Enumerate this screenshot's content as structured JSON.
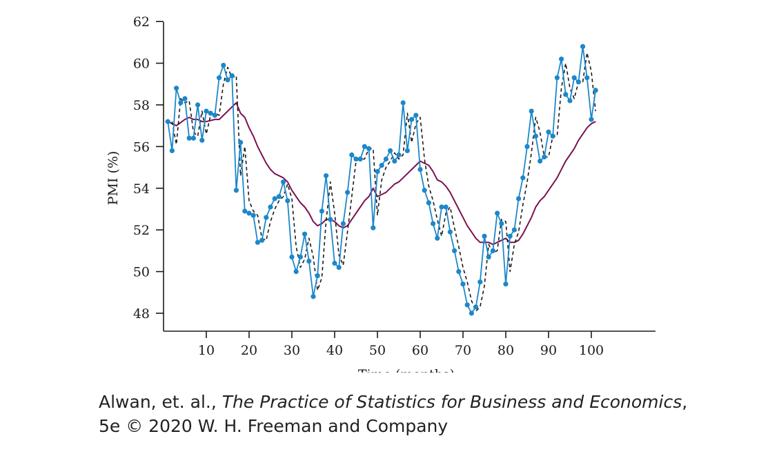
{
  "chart_data": {
    "type": "line",
    "xlabel": "Time (months)",
    "ylabel": "PMI (%)",
    "xlim": [
      0,
      102
    ],
    "ylim": [
      47.2,
      62
    ],
    "xticks": [
      10,
      20,
      30,
      40,
      50,
      60,
      70,
      80,
      90,
      100
    ],
    "yticks": [
      48,
      50,
      52,
      54,
      56,
      58,
      60,
      62
    ],
    "grid": false,
    "legend": "none",
    "series": [
      {
        "style": "line-with-markers",
        "color": "#1c87c9",
        "x": [
          1,
          2,
          3,
          4,
          5,
          6,
          7,
          8,
          9,
          10,
          11,
          12,
          13,
          14,
          15,
          16,
          17,
          18,
          19,
          20,
          21,
          22,
          23,
          24,
          25,
          26,
          27,
          28,
          29,
          30,
          31,
          32,
          33,
          34,
          35,
          36,
          37,
          38,
          39,
          40,
          41,
          42,
          43,
          44,
          45,
          46,
          47,
          48,
          49,
          50,
          51,
          52,
          53,
          54,
          55,
          56,
          57,
          58,
          59,
          60,
          61,
          62,
          63,
          64,
          65,
          66,
          67,
          68,
          69,
          70,
          71,
          72,
          73,
          74,
          75,
          76,
          77,
          78,
          79,
          80,
          81,
          82,
          83,
          84,
          85,
          86,
          87,
          88,
          89,
          90,
          91,
          92,
          93,
          94,
          95,
          96,
          97,
          98,
          99,
          100,
          101
        ],
        "values": [
          57.2,
          55.8,
          58.8,
          58.1,
          58.3,
          56.4,
          56.4,
          58.0,
          56.3,
          57.7,
          57.6,
          57.5,
          59.3,
          59.9,
          59.2,
          59.4,
          53.9,
          56.2,
          52.9,
          52.8,
          52.7,
          51.4,
          51.5,
          52.6,
          53.1,
          53.5,
          53.6,
          54.3,
          53.4,
          50.7,
          50.0,
          50.7,
          51.8,
          50.5,
          48.8,
          49.8,
          52.9,
          54.6,
          52.5,
          50.4,
          50.2,
          52.3,
          53.8,
          55.6,
          55.4,
          55.4,
          56.0,
          55.9,
          52.1,
          54.8,
          55.1,
          55.4,
          55.8,
          55.3,
          55.6,
          58.1,
          55.8,
          57.3,
          57.5,
          54.9,
          53.9,
          53.3,
          52.3,
          51.6,
          53.1,
          53.1,
          51.9,
          51.0,
          50.0,
          49.4,
          48.4,
          48.0,
          48.3,
          49.5,
          51.7,
          50.7,
          51.0,
          52.8,
          52.3,
          49.4,
          51.7,
          52.0,
          53.5,
          54.5,
          56.0,
          57.7,
          56.5,
          55.3,
          55.5,
          56.7,
          56.5,
          59.3,
          60.2,
          58.5,
          58.2,
          59.3,
          59.1,
          60.8,
          59.3,
          57.3,
          58.7
        ]
      },
      {
        "style": "dashed",
        "color": "#1a1a1a",
        "x": [
          2,
          3,
          4,
          5,
          6,
          7,
          8,
          9,
          10,
          11,
          12,
          13,
          14,
          15,
          16,
          17,
          18,
          19,
          20,
          21,
          22,
          23,
          24,
          25,
          26,
          27,
          28,
          29,
          30,
          31,
          32,
          33,
          34,
          35,
          36,
          37,
          38,
          39,
          40,
          41,
          42,
          43,
          44,
          45,
          46,
          47,
          48,
          49,
          50,
          51,
          52,
          53,
          54,
          55,
          56,
          57,
          58,
          59,
          60,
          61,
          62,
          63,
          64,
          65,
          66,
          67,
          68,
          69,
          70,
          71,
          72,
          73,
          74,
          75,
          76,
          77,
          78,
          79,
          80,
          81,
          82,
          83,
          84,
          85,
          86,
          87,
          88,
          89,
          90,
          91,
          92,
          93,
          94,
          95,
          96,
          97,
          98,
          99,
          100,
          101
        ],
        "values": [
          57.2,
          56.1,
          58.3,
          58.1,
          58.2,
          56.7,
          56.5,
          57.7,
          56.6,
          57.5,
          57.6,
          57.5,
          59.0,
          59.8,
          59.3,
          59.4,
          54.6,
          56.0,
          53.4,
          52.9,
          52.7,
          51.6,
          51.5,
          52.4,
          53.0,
          53.4,
          53.6,
          54.2,
          53.5,
          51.2,
          50.2,
          50.6,
          51.6,
          50.7,
          49.1,
          49.7,
          52.4,
          54.3,
          52.8,
          50.8,
          50.3,
          51.9,
          53.6,
          55.3,
          55.4,
          55.4,
          55.9,
          55.9,
          52.7,
          54.4,
          55.0,
          55.3,
          55.7,
          55.4,
          55.6,
          57.6,
          56.2,
          57.1,
          57.4,
          55.4,
          54.1,
          53.4,
          52.5,
          51.7,
          52.8,
          53.1,
          52.1,
          51.2,
          50.2,
          49.5,
          48.6,
          48.1,
          48.3,
          49.3,
          51.3,
          50.9,
          51.0,
          52.5,
          52.4,
          50.0,
          51.3,
          51.9,
          53.2,
          54.3,
          55.7,
          57.4,
          56.7,
          55.5,
          55.5,
          56.5,
          56.5,
          58.8,
          60.0,
          58.8,
          58.3,
          59.1,
          59.1,
          60.5,
          59.6,
          57.7
        ]
      },
      {
        "style": "solid",
        "color": "#7a1150",
        "x": [
          1,
          3,
          5,
          6,
          7,
          8,
          9,
          10,
          12,
          13,
          14,
          15,
          16,
          17,
          18,
          19,
          20,
          21,
          22,
          23,
          24,
          25,
          26,
          27,
          28,
          29,
          30,
          31,
          32,
          33,
          34,
          35,
          36,
          37,
          38,
          39,
          40,
          41,
          42,
          43,
          44,
          45,
          46,
          47,
          48,
          49,
          50,
          51,
          52,
          53,
          54,
          55,
          56,
          57,
          58,
          59,
          60,
          61,
          62,
          63,
          64,
          65,
          66,
          67,
          68,
          69,
          70,
          71,
          72,
          73,
          74,
          75,
          76,
          77,
          78,
          79,
          80,
          81,
          82,
          83,
          84,
          85,
          86,
          87,
          88,
          89,
          90,
          91,
          92,
          93,
          94,
          95,
          96,
          97,
          98,
          99,
          100,
          101
        ],
        "values": [
          57.2,
          57.0,
          57.3,
          57.4,
          57.3,
          57.3,
          57.2,
          57.2,
          57.3,
          57.3,
          57.5,
          57.7,
          57.9,
          58.1,
          57.6,
          57.4,
          56.9,
          56.5,
          56.0,
          55.6,
          55.2,
          54.9,
          54.7,
          54.6,
          54.5,
          54.3,
          53.9,
          53.6,
          53.3,
          53.1,
          52.8,
          52.4,
          52.2,
          52.3,
          52.5,
          52.5,
          52.4,
          52.2,
          52.1,
          52.2,
          52.5,
          52.8,
          53.1,
          53.4,
          53.6,
          54.0,
          53.6,
          53.7,
          53.8,
          54.0,
          54.2,
          54.3,
          54.5,
          54.7,
          54.9,
          55.1,
          55.3,
          55.2,
          55.1,
          54.8,
          54.4,
          54.3,
          54.1,
          53.8,
          53.4,
          53.0,
          52.6,
          52.2,
          51.9,
          51.6,
          51.4,
          51.4,
          51.4,
          51.3,
          51.4,
          51.5,
          51.6,
          51.4,
          51.4,
          51.5,
          51.8,
          52.2,
          52.6,
          53.1,
          53.4,
          53.6,
          53.9,
          54.2,
          54.5,
          54.9,
          55.3,
          55.6,
          55.9,
          56.3,
          56.6,
          56.9,
          57.1,
          57.2
        ]
      }
    ]
  },
  "credit": {
    "line1_pre": "Alwan, et. al., ",
    "line1_title": "The Practice of Statistics for Business and Economics",
    "line1_post": ",",
    "line2": "5e © 2020 W. H. Freeman and Company"
  }
}
